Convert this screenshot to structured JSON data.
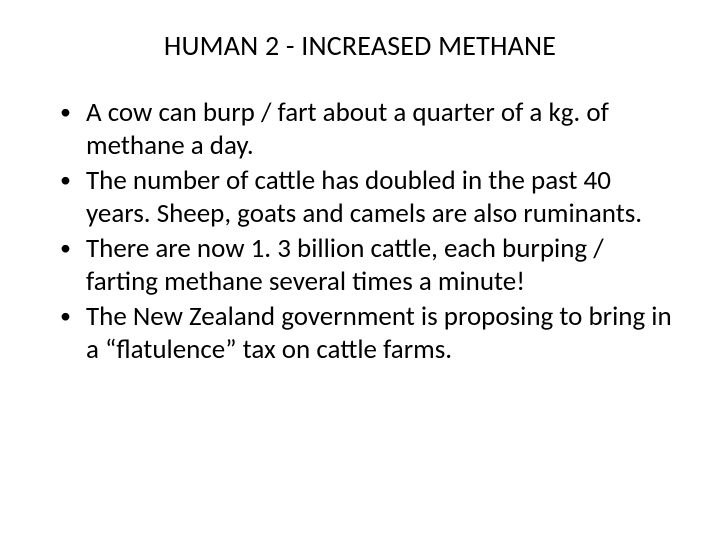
{
  "slide": {
    "title": "HUMAN 2 - INCREASED METHANE",
    "bullets": [
      "A cow can burp / fart about a quarter of a  kg. of methane a day.",
      "The number of cattle has doubled in the past 40 years. Sheep, goats and camels are also ruminants.",
      "There are now 1. 3 billion cattle, each burping / farting methane several times a minute!",
      "The New Zealand government is proposing to bring in a “flatulence” tax on cattle farms."
    ],
    "title_fontsize": 28,
    "body_fontsize": 27,
    "text_color": "#000000",
    "background_color": "#ffffff"
  }
}
